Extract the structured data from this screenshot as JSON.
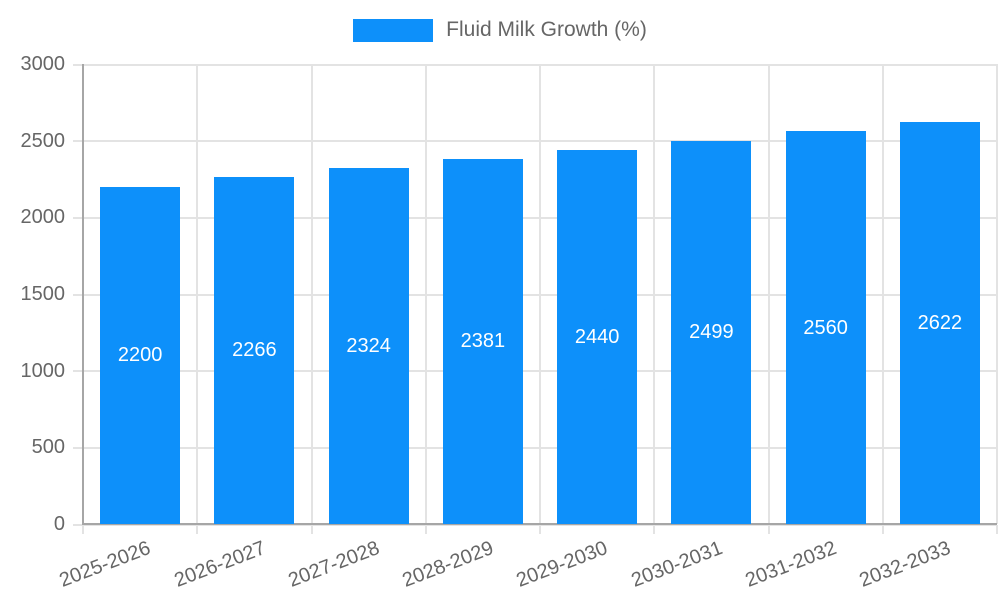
{
  "chart_data": {
    "type": "bar",
    "legend": {
      "label": "Fluid Milk Growth (%)",
      "position": "top"
    },
    "categories": [
      "2025-2026",
      "2026-2027",
      "2027-2028",
      "2028-2029",
      "2029-2030",
      "2030-2031",
      "2031-2032",
      "2032-2033"
    ],
    "series": [
      {
        "name": "Fluid Milk Growth (%)",
        "values": [
          2200,
          2266,
          2324,
          2381,
          2440,
          2499,
          2560,
          2622
        ]
      }
    ],
    "value_labels_shown": true,
    "xlabel": "",
    "ylabel": "",
    "ylim": [
      0,
      3000
    ],
    "yticks": [
      0,
      500,
      1000,
      1500,
      2000,
      2500,
      3000
    ],
    "grid": true,
    "colors": {
      "bar": "#0d90fa",
      "grid": "#e3e3e3",
      "axis": "#a6a6a6",
      "tick_label": "#666666",
      "legend_text": "#666666",
      "value_label": "#ffffff",
      "background": "#ffffff"
    }
  }
}
